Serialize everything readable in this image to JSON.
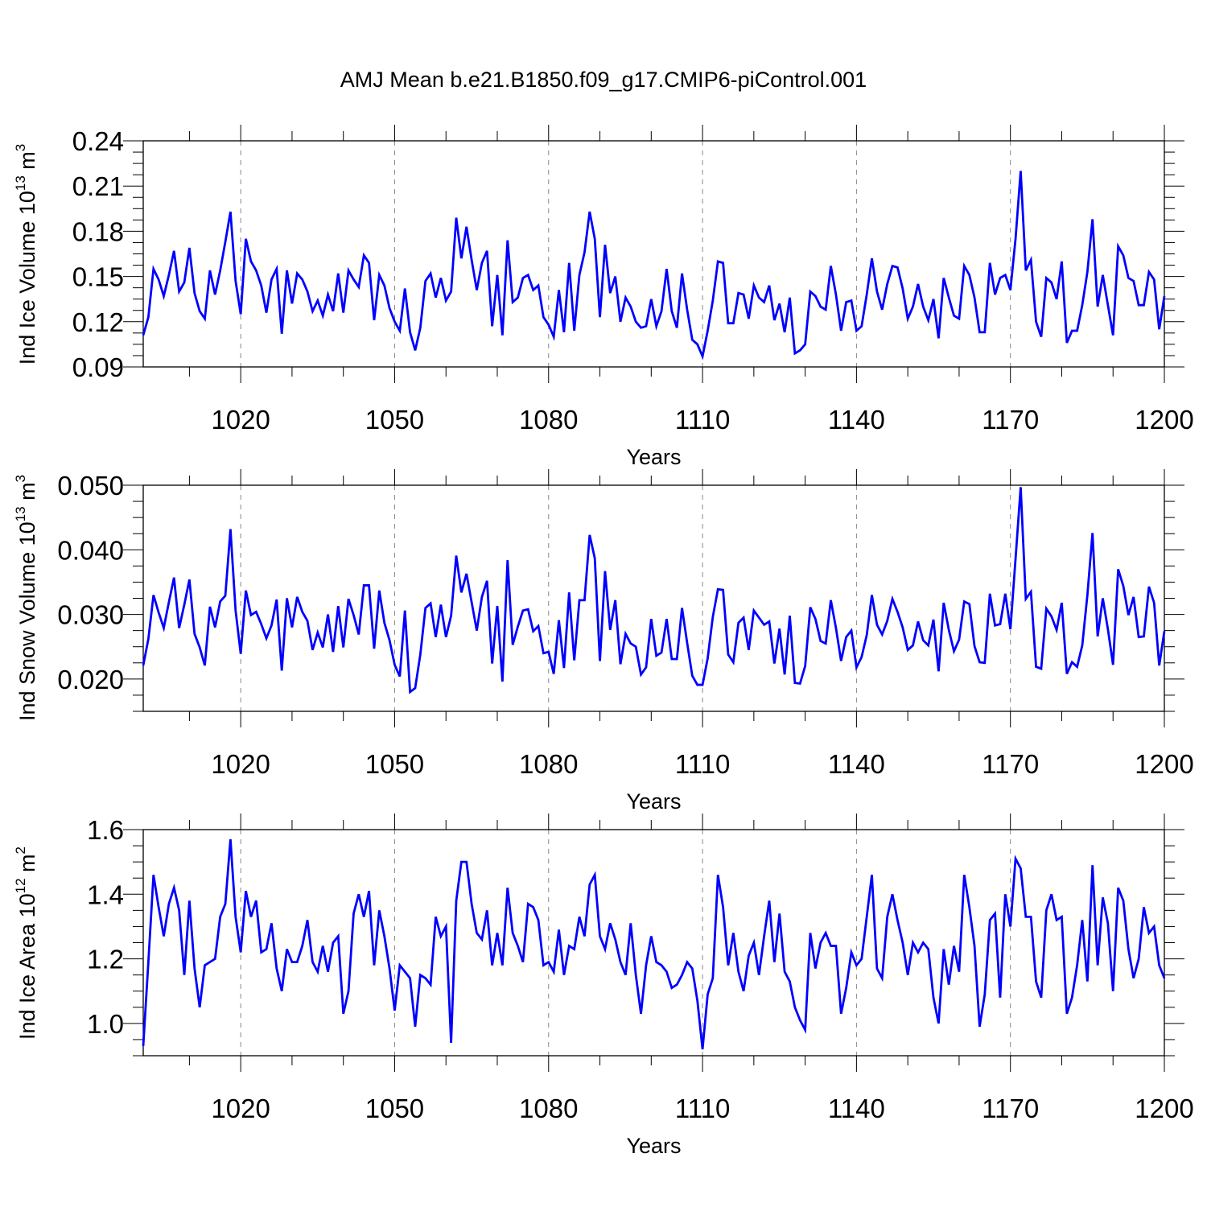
{
  "figure": {
    "title": "AMJ Mean b.e21.B1850.f09_g17.CMIP6-piControl.001"
  },
  "chart_data": [
    {
      "type": "line",
      "title": "AMJ Mean b.e21.B1850.f09_g17.CMIP6-piControl.001",
      "xlabel": "Years",
      "ylabel": {
        "text": "Ind Ice Volume 10",
        "sup": "13",
        "unit": " m",
        "unit_sup": "3"
      },
      "xlim": [
        1001,
        1200
      ],
      "ylim": [
        0.09,
        0.24
      ],
      "xticks": [
        1020,
        1050,
        1080,
        1110,
        1140,
        1170,
        1200
      ],
      "yticks": [
        0.09,
        0.12,
        0.15,
        0.18,
        0.21,
        0.24
      ],
      "ytick_labels": [
        "0.09",
        "0.12",
        "0.15",
        "0.18",
        "0.21",
        "0.24"
      ],
      "grid": "vertical dashed at x ticks",
      "color": "#0000ff",
      "x_start": 1001,
      "values": [
        0.111,
        0.123,
        0.155,
        0.148,
        0.137,
        0.151,
        0.167,
        0.14,
        0.146,
        0.169,
        0.139,
        0.127,
        0.122,
        0.154,
        0.138,
        0.154,
        0.173,
        0.193,
        0.147,
        0.125,
        0.175,
        0.16,
        0.154,
        0.144,
        0.126,
        0.148,
        0.155,
        0.112,
        0.154,
        0.132,
        0.152,
        0.148,
        0.14,
        0.127,
        0.134,
        0.124,
        0.138,
        0.127,
        0.152,
        0.126,
        0.154,
        0.148,
        0.143,
        0.164,
        0.159,
        0.121,
        0.151,
        0.144,
        0.129,
        0.12,
        0.114,
        0.142,
        0.113,
        0.101,
        0.116,
        0.147,
        0.152,
        0.136,
        0.149,
        0.134,
        0.14,
        0.189,
        0.162,
        0.183,
        0.161,
        0.141,
        0.159,
        0.167,
        0.117,
        0.151,
        0.111,
        0.174,
        0.133,
        0.136,
        0.149,
        0.151,
        0.141,
        0.144,
        0.123,
        0.118,
        0.11,
        0.141,
        0.113,
        0.159,
        0.114,
        0.151,
        0.166,
        0.193,
        0.175,
        0.123,
        0.171,
        0.139,
        0.15,
        0.12,
        0.136,
        0.13,
        0.12,
        0.116,
        0.117,
        0.135,
        0.117,
        0.127,
        0.155,
        0.127,
        0.116,
        0.152,
        0.128,
        0.108,
        0.105,
        0.097,
        0.114,
        0.134,
        0.16,
        0.159,
        0.119,
        0.119,
        0.139,
        0.138,
        0.122,
        0.144,
        0.136,
        0.133,
        0.144,
        0.121,
        0.132,
        0.113,
        0.136,
        0.099,
        0.101,
        0.105,
        0.14,
        0.137,
        0.13,
        0.128,
        0.157,
        0.138,
        0.114,
        0.133,
        0.134,
        0.114,
        0.117,
        0.138,
        0.162,
        0.14,
        0.128,
        0.145,
        0.157,
        0.156,
        0.142,
        0.122,
        0.13,
        0.145,
        0.13,
        0.121,
        0.135,
        0.109,
        0.149,
        0.136,
        0.124,
        0.122,
        0.157,
        0.151,
        0.136,
        0.113,
        0.113,
        0.159,
        0.138,
        0.149,
        0.151,
        0.141,
        0.175,
        0.22,
        0.154,
        0.161,
        0.12,
        0.11,
        0.149,
        0.146,
        0.135,
        0.16,
        0.106,
        0.114,
        0.114,
        0.131,
        0.153,
        0.188,
        0.13,
        0.151,
        0.131,
        0.111,
        0.17,
        0.164,
        0.149,
        0.147,
        0.131,
        0.131,
        0.153,
        0.148,
        0.115,
        0.137
      ]
    },
    {
      "type": "line",
      "xlabel": "Years",
      "ylabel": {
        "text": "Ind Snow Volume 10",
        "sup": "13",
        "unit": " m",
        "unit_sup": "3"
      },
      "xlim": [
        1001,
        1200
      ],
      "ylim": [
        0.015,
        0.05
      ],
      "xticks": [
        1020,
        1050,
        1080,
        1110,
        1140,
        1170,
        1200
      ],
      "yticks": [
        0.02,
        0.03,
        0.04,
        0.05
      ],
      "ytick_labels": [
        "0.020",
        "0.030",
        "0.040",
        "0.050"
      ],
      "grid": "vertical dashed at x ticks",
      "color": "#0000ff",
      "x_start": 1001,
      "values": [
        0.0221,
        0.0262,
        0.033,
        0.0303,
        0.0279,
        0.0319,
        0.0357,
        0.0279,
        0.0315,
        0.0354,
        0.027,
        0.0249,
        0.0221,
        0.0312,
        0.028,
        0.032,
        0.0329,
        0.0432,
        0.0306,
        0.0239,
        0.0337,
        0.0299,
        0.0304,
        0.0285,
        0.0263,
        0.0283,
        0.0323,
        0.0213,
        0.0325,
        0.028,
        0.0327,
        0.0304,
        0.029,
        0.0245,
        0.0272,
        0.0249,
        0.03,
        0.0242,
        0.0313,
        0.0249,
        0.0324,
        0.0299,
        0.0269,
        0.0345,
        0.0345,
        0.0247,
        0.0337,
        0.0287,
        0.026,
        0.0222,
        0.0204,
        0.0306,
        0.018,
        0.0186,
        0.0238,
        0.031,
        0.0317,
        0.0265,
        0.0315,
        0.0265,
        0.0298,
        0.0391,
        0.0334,
        0.0363,
        0.0319,
        0.0275,
        0.0327,
        0.0352,
        0.0224,
        0.0313,
        0.0196,
        0.0384,
        0.0253,
        0.0281,
        0.0306,
        0.0308,
        0.0274,
        0.0282,
        0.024,
        0.0242,
        0.0208,
        0.0291,
        0.0217,
        0.0334,
        0.0229,
        0.0322,
        0.0322,
        0.0423,
        0.0387,
        0.0228,
        0.0367,
        0.0276,
        0.0322,
        0.0223,
        0.027,
        0.0255,
        0.025,
        0.0207,
        0.0218,
        0.0293,
        0.0236,
        0.0241,
        0.0293,
        0.0231,
        0.0231,
        0.031,
        0.0256,
        0.0205,
        0.0191,
        0.0191,
        0.0232,
        0.0296,
        0.0339,
        0.0338,
        0.0238,
        0.0226,
        0.0287,
        0.0295,
        0.0245,
        0.0306,
        0.0295,
        0.0284,
        0.0289,
        0.0224,
        0.0278,
        0.0207,
        0.0298,
        0.0194,
        0.0193,
        0.022,
        0.0311,
        0.0293,
        0.0259,
        0.0255,
        0.0322,
        0.0279,
        0.0228,
        0.0265,
        0.0275,
        0.0218,
        0.0234,
        0.0268,
        0.033,
        0.0284,
        0.0269,
        0.029,
        0.0324,
        0.0304,
        0.028,
        0.0245,
        0.0252,
        0.0289,
        0.026,
        0.0252,
        0.0292,
        0.0212,
        0.0318,
        0.0276,
        0.0243,
        0.0261,
        0.032,
        0.0316,
        0.0251,
        0.0226,
        0.0225,
        0.0332,
        0.0283,
        0.0285,
        0.0332,
        0.0277,
        0.0386,
        0.0497,
        0.0324,
        0.0335,
        0.0219,
        0.0216,
        0.0309,
        0.0297,
        0.0276,
        0.0318,
        0.0208,
        0.0226,
        0.0219,
        0.0252,
        0.033,
        0.0426,
        0.0266,
        0.0325,
        0.0277,
        0.0222,
        0.037,
        0.0344,
        0.0299,
        0.0327,
        0.0265,
        0.0266,
        0.0343,
        0.0318,
        0.0221,
        0.0274
      ]
    },
    {
      "type": "line",
      "xlabel": "Years",
      "ylabel": {
        "text": "Ind Ice Area 10",
        "sup": "12",
        "unit": " m",
        "unit_sup": "2"
      },
      "xlim": [
        1001,
        1200
      ],
      "ylim": [
        0.9,
        1.6
      ],
      "xticks": [
        1020,
        1050,
        1080,
        1110,
        1140,
        1170,
        1200
      ],
      "yticks": [
        1.0,
        1.2,
        1.4,
        1.6
      ],
      "ytick_labels": [
        "1.0",
        "1.2",
        "1.4",
        "1.6"
      ],
      "grid": "vertical dashed at x ticks",
      "color": "#0000ff",
      "x_start": 1001,
      "values": [
        0.93,
        1.19,
        1.46,
        1.36,
        1.27,
        1.37,
        1.42,
        1.35,
        1.15,
        1.38,
        1.17,
        1.05,
        1.18,
        1.19,
        1.2,
        1.33,
        1.37,
        1.57,
        1.33,
        1.22,
        1.41,
        1.33,
        1.38,
        1.22,
        1.23,
        1.31,
        1.17,
        1.1,
        1.23,
        1.19,
        1.19,
        1.24,
        1.32,
        1.19,
        1.16,
        1.24,
        1.16,
        1.25,
        1.27,
        1.03,
        1.1,
        1.34,
        1.4,
        1.33,
        1.41,
        1.18,
        1.35,
        1.27,
        1.17,
        1.04,
        1.18,
        1.16,
        1.14,
        0.99,
        1.15,
        1.14,
        1.12,
        1.33,
        1.27,
        1.3,
        0.94,
        1.38,
        1.5,
        1.5,
        1.37,
        1.28,
        1.26,
        1.35,
        1.18,
        1.28,
        1.18,
        1.42,
        1.28,
        1.24,
        1.19,
        1.37,
        1.36,
        1.32,
        1.18,
        1.19,
        1.16,
        1.29,
        1.15,
        1.24,
        1.23,
        1.33,
        1.27,
        1.43,
        1.46,
        1.27,
        1.23,
        1.31,
        1.26,
        1.19,
        1.15,
        1.31,
        1.15,
        1.03,
        1.18,
        1.27,
        1.19,
        1.18,
        1.16,
        1.11,
        1.12,
        1.15,
        1.19,
        1.17,
        1.07,
        0.92,
        1.09,
        1.14,
        1.46,
        1.36,
        1.18,
        1.28,
        1.16,
        1.1,
        1.21,
        1.25,
        1.15,
        1.27,
        1.38,
        1.19,
        1.34,
        1.16,
        1.13,
        1.05,
        1.01,
        0.98,
        1.28,
        1.17,
        1.25,
        1.28,
        1.24,
        1.24,
        1.03,
        1.11,
        1.22,
        1.18,
        1.2,
        1.33,
        1.46,
        1.17,
        1.14,
        1.33,
        1.4,
        1.32,
        1.25,
        1.15,
        1.25,
        1.22,
        1.25,
        1.23,
        1.08,
        1.0,
        1.23,
        1.12,
        1.24,
        1.16,
        1.46,
        1.36,
        1.24,
        0.99,
        1.09,
        1.32,
        1.34,
        1.08,
        1.4,
        1.3,
        1.51,
        1.48,
        1.33,
        1.33,
        1.13,
        1.08,
        1.35,
        1.4,
        1.32,
        1.33,
        1.03,
        1.08,
        1.18,
        1.32,
        1.13,
        1.49,
        1.18,
        1.39,
        1.31,
        1.1,
        1.42,
        1.38,
        1.23,
        1.14,
        1.2,
        1.36,
        1.28,
        1.3,
        1.18,
        1.14
      ]
    }
  ]
}
